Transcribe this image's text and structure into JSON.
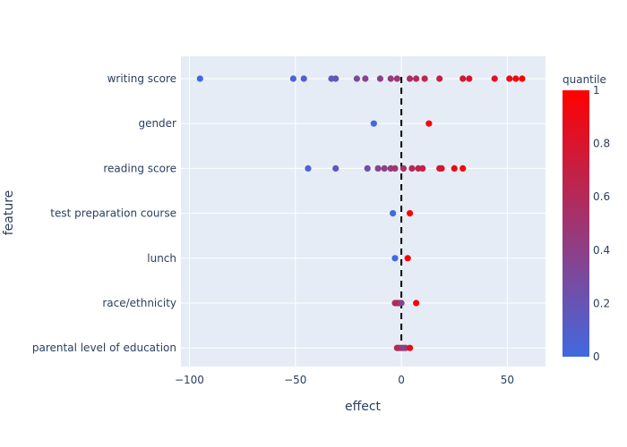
{
  "chart_data": {
    "type": "scatter",
    "xlabel": "effect",
    "ylabel": "feature",
    "xlim": [
      -104,
      68
    ],
    "x_ticks": [
      -100,
      -50,
      0,
      50
    ],
    "x_tick_labels": [
      "−100",
      "−50",
      "0",
      "50"
    ],
    "zero_line": {
      "x": 0,
      "style": "dashed",
      "color": "#000000"
    },
    "grid": true,
    "background_color": "#e5ecf6",
    "colorbar": {
      "title": "quantile",
      "range": [
        0,
        1
      ],
      "ticks": [
        0,
        0.2,
        0.4,
        0.6,
        0.8,
        1
      ],
      "tick_labels": [
        "0",
        "0.2",
        "0.4",
        "0.6",
        "0.8",
        "1"
      ],
      "color_low": "#4169e1",
      "color_high": "#ff0000"
    },
    "categories": [
      "writing score",
      "gender",
      "reading score",
      "test preparation course",
      "lunch",
      "race/ethnicity",
      "parental level of education"
    ],
    "series": [
      {
        "category": "writing score",
        "points": [
          {
            "x": -95,
            "q": 0.0
          },
          {
            "x": -51,
            "q": 0.05
          },
          {
            "x": -46,
            "q": 0.1
          },
          {
            "x": -33,
            "q": 0.15
          },
          {
            "x": -31,
            "q": 0.2
          },
          {
            "x": -21,
            "q": 0.3
          },
          {
            "x": -17,
            "q": 0.35
          },
          {
            "x": -10,
            "q": 0.4
          },
          {
            "x": -5,
            "q": 0.45
          },
          {
            "x": -2,
            "q": 0.5
          },
          {
            "x": 4,
            "q": 0.55
          },
          {
            "x": 7,
            "q": 0.6
          },
          {
            "x": 11,
            "q": 0.65
          },
          {
            "x": 18,
            "q": 0.7
          },
          {
            "x": 29,
            "q": 0.75
          },
          {
            "x": 32,
            "q": 0.8
          },
          {
            "x": 44,
            "q": 0.85
          },
          {
            "x": 51,
            "q": 0.9
          },
          {
            "x": 54,
            "q": 0.95
          },
          {
            "x": 57,
            "q": 1.0
          }
        ]
      },
      {
        "category": "gender",
        "points": [
          {
            "x": -13,
            "q": 0.0
          },
          {
            "x": 13,
            "q": 1.0
          }
        ]
      },
      {
        "category": "reading score",
        "points": [
          {
            "x": -44,
            "q": 0.05
          },
          {
            "x": -31,
            "q": 0.15
          },
          {
            "x": -16,
            "q": 0.25
          },
          {
            "x": -11,
            "q": 0.35
          },
          {
            "x": -8,
            "q": 0.4
          },
          {
            "x": -5,
            "q": 0.45
          },
          {
            "x": -3,
            "q": 0.5
          },
          {
            "x": 1,
            "q": 0.55
          },
          {
            "x": 5,
            "q": 0.6
          },
          {
            "x": 8,
            "q": 0.65
          },
          {
            "x": 10,
            "q": 0.7
          },
          {
            "x": 18,
            "q": 0.75
          },
          {
            "x": 19,
            "q": 0.8
          },
          {
            "x": 25,
            "q": 0.9
          },
          {
            "x": 29,
            "q": 0.95
          }
        ]
      },
      {
        "category": "test preparation course",
        "points": [
          {
            "x": -4,
            "q": 0.0
          },
          {
            "x": 4,
            "q": 1.0
          }
        ]
      },
      {
        "category": "lunch",
        "points": [
          {
            "x": -3,
            "q": 0.0
          },
          {
            "x": 3,
            "q": 1.0
          }
        ]
      },
      {
        "category": "race/ethnicity",
        "points": [
          {
            "x": -3,
            "q": 0.55
          },
          {
            "x": -2,
            "q": 0.65
          },
          {
            "x": -1,
            "q": 0.6
          },
          {
            "x": 0,
            "q": 0.35
          },
          {
            "x": 7,
            "q": 0.95
          }
        ]
      },
      {
        "category": "parental level of education",
        "points": [
          {
            "x": -2,
            "q": 0.6
          },
          {
            "x": -1,
            "q": 0.65
          },
          {
            "x": 0,
            "q": 0.5
          },
          {
            "x": 1,
            "q": 0.45
          },
          {
            "x": 2,
            "q": 0.4
          },
          {
            "x": 4,
            "q": 0.9
          }
        ]
      }
    ]
  }
}
